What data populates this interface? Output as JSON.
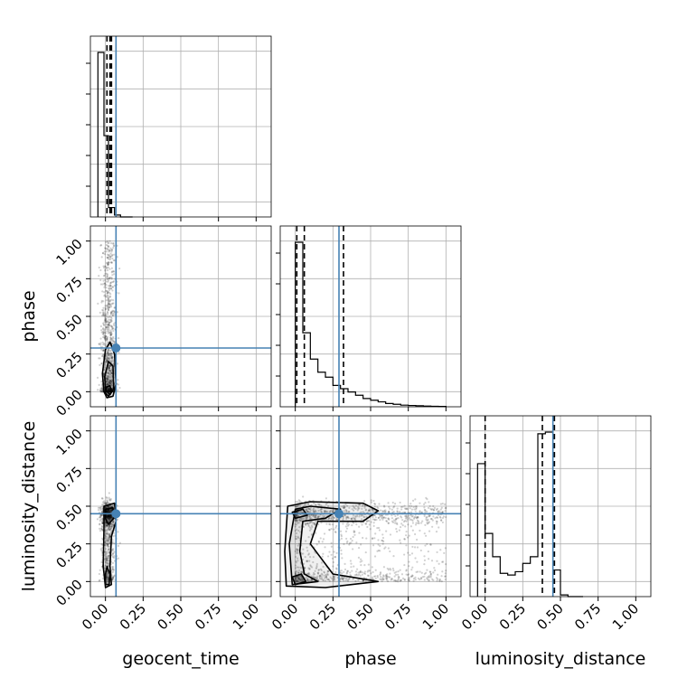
{
  "chart_data": {
    "type": "corner",
    "parameters": [
      "geocent_time",
      "phase",
      "luminosity_distance"
    ],
    "axis_range": [
      -0.1,
      1.1
    ],
    "ticks": [
      0.0,
      0.25,
      0.5,
      0.75,
      1.0
    ],
    "tick_labels": [
      "0.00",
      "0.25",
      "0.50",
      "0.75",
      "1.00"
    ],
    "grid": true,
    "truth": {
      "color": "#4682b4",
      "values": {
        "geocent_time": 0.07,
        "phase": 0.29,
        "luminosity_distance": 0.45
      }
    },
    "histograms": {
      "geocent_time": {
        "bins": [
          -0.05,
          -0.01,
          0.02,
          0.06,
          0.1,
          0.14,
          0.18
        ],
        "counts": [
          0.87,
          0.43,
          0.05,
          0.01,
          0.0,
          0.0
        ],
        "quantiles": [
          0.01,
          0.03,
          0.04
        ]
      },
      "phase": {
        "bins": [
          0.0,
          0.05,
          0.1,
          0.15,
          0.2,
          0.25,
          0.3,
          0.35,
          0.4,
          0.45,
          0.5,
          0.55,
          0.6,
          0.65,
          0.7,
          0.75,
          0.8,
          0.85,
          0.9,
          0.95,
          1.0
        ],
        "counts": [
          1.0,
          0.45,
          0.29,
          0.21,
          0.18,
          0.13,
          0.11,
          0.09,
          0.07,
          0.05,
          0.04,
          0.03,
          0.02,
          0.015,
          0.01,
          0.008,
          0.006,
          0.004,
          0.003,
          0.002
        ],
        "quantiles": [
          0.01,
          0.06,
          0.32
        ]
      },
      "luminosity_distance": {
        "bins": [
          -0.05,
          0.0,
          0.05,
          0.1,
          0.15,
          0.2,
          0.25,
          0.3,
          0.35,
          0.4,
          0.45,
          0.5,
          0.55,
          0.6,
          0.65
        ],
        "counts": [
          0.8,
          0.38,
          0.24,
          0.14,
          0.13,
          0.15,
          0.2,
          0.24,
          0.98,
          0.99,
          0.16,
          0.01,
          0.0,
          0.0
        ],
        "quantiles": [
          0.0,
          0.38,
          0.46
        ]
      }
    },
    "scatter_panels": [
      {
        "x": "geocent_time",
        "y": "phase"
      },
      {
        "x": "geocent_time",
        "y": "luminosity_distance"
      },
      {
        "x": "phase",
        "y": "luminosity_distance"
      }
    ]
  }
}
